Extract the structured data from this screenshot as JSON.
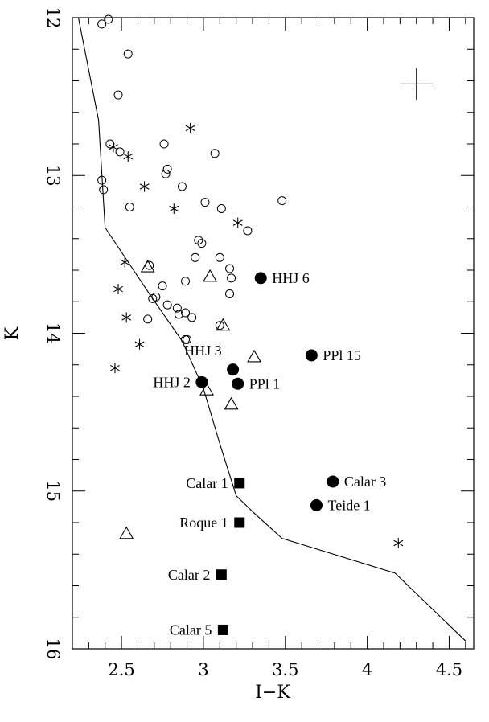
{
  "chart_data": {
    "type": "scatter",
    "xlabel": "I−K",
    "ylabel": "K",
    "xlim": [
      2.2,
      4.65
    ],
    "ylim": [
      16,
      12
    ],
    "y_inverted": true,
    "x_ticks": [
      2.5,
      3,
      3.5,
      4,
      4.5
    ],
    "x_tick_labels": [
      "2.5",
      "3",
      "3.5",
      "4",
      "4.5"
    ],
    "y_ticks": [
      12,
      13,
      14,
      15,
      16
    ],
    "y_tick_labels": [
      "12",
      "13",
      "14",
      "15",
      "16"
    ],
    "grid": false,
    "error_cross": {
      "x": 4.3,
      "y": 12.42,
      "dx": 0.1,
      "dy": 0.1
    },
    "isochrone": {
      "x": [
        2.2,
        2.36,
        2.4,
        2.67,
        2.87,
        3.0,
        3.1,
        3.2,
        3.3,
        3.48,
        4.17,
        4.6
      ],
      "y": [
        11.9,
        12.65,
        13.33,
        13.75,
        14.05,
        14.35,
        14.7,
        15.03,
        15.13,
        15.3,
        15.52,
        15.95
      ]
    },
    "series": [
      {
        "marker": "open-circle",
        "points": [
          [
            2.38,
            12.04
          ],
          [
            2.42,
            12.01
          ],
          [
            2.54,
            12.23
          ],
          [
            2.48,
            12.49
          ],
          [
            2.43,
            12.8
          ],
          [
            2.49,
            12.85
          ],
          [
            2.38,
            13.03
          ],
          [
            2.39,
            13.09
          ],
          [
            2.55,
            13.2
          ],
          [
            2.76,
            12.8
          ],
          [
            2.77,
            12.99
          ],
          [
            2.78,
            12.96
          ],
          [
            2.87,
            13.07
          ],
          [
            3.07,
            12.86
          ],
          [
            3.01,
            13.17
          ],
          [
            3.11,
            13.21
          ],
          [
            3.48,
            13.16
          ],
          [
            3.27,
            13.35
          ],
          [
            2.97,
            13.41
          ],
          [
            2.99,
            13.43
          ],
          [
            2.95,
            13.52
          ],
          [
            3.1,
            13.52
          ],
          [
            3.16,
            13.59
          ],
          [
            3.17,
            13.65
          ],
          [
            3.16,
            13.75
          ],
          [
            2.67,
            13.57
          ],
          [
            2.75,
            13.7
          ],
          [
            2.89,
            13.67
          ],
          [
            2.69,
            13.78
          ],
          [
            2.71,
            13.77
          ],
          [
            2.78,
            13.82
          ],
          [
            2.84,
            13.84
          ],
          [
            2.85,
            13.88
          ],
          [
            2.89,
            13.87
          ],
          [
            2.93,
            13.9
          ],
          [
            2.66,
            13.91
          ],
          [
            2.89,
            14.04
          ],
          [
            2.9,
            14.04
          ],
          [
            3.1,
            13.95
          ]
        ]
      },
      {
        "marker": "asterisk",
        "points": [
          [
            2.92,
            12.7
          ],
          [
            2.45,
            12.82
          ],
          [
            2.54,
            12.88
          ],
          [
            2.64,
            13.07
          ],
          [
            2.82,
            13.21
          ],
          [
            3.21,
            13.3
          ],
          [
            2.52,
            13.55
          ],
          [
            2.48,
            13.72
          ],
          [
            2.53,
            13.9
          ],
          [
            2.61,
            14.07
          ],
          [
            2.46,
            14.22
          ],
          [
            4.19,
            15.33
          ]
        ]
      },
      {
        "marker": "open-triangle",
        "points": [
          [
            2.66,
            13.58
          ],
          [
            3.04,
            13.64
          ],
          [
            3.12,
            13.95
          ],
          [
            3.31,
            14.15
          ],
          [
            3.02,
            14.36
          ],
          [
            3.17,
            14.45
          ],
          [
            2.53,
            15.27
          ]
        ]
      },
      {
        "marker": "filled-circle",
        "points": [
          [
            3.35,
            13.65
          ],
          [
            3.66,
            14.14
          ],
          [
            3.18,
            14.23
          ],
          [
            2.99,
            14.31
          ],
          [
            3.21,
            14.32
          ],
          [
            3.79,
            14.94
          ],
          [
            3.69,
            15.09
          ]
        ]
      },
      {
        "marker": "filled-square",
        "points": [
          [
            3.22,
            14.95
          ],
          [
            3.22,
            15.2
          ],
          [
            3.11,
            15.53
          ],
          [
            3.12,
            15.88
          ]
        ]
      }
    ],
    "annotations": [
      {
        "text": "HHJ 6",
        "x": 3.35,
        "y": 13.65,
        "anchor": "start"
      },
      {
        "text": "HHJ 3",
        "x": 3.18,
        "y": 14.23,
        "anchor": "end",
        "dy": -0.12
      },
      {
        "text": "PPl 15",
        "x": 3.66,
        "y": 14.14,
        "anchor": "start"
      },
      {
        "text": "HHJ 2",
        "x": 2.99,
        "y": 14.31,
        "anchor": "end"
      },
      {
        "text": "PPl 1",
        "x": 3.21,
        "y": 14.32,
        "anchor": "start"
      },
      {
        "text": "Calar 1",
        "x": 3.22,
        "y": 14.95,
        "anchor": "end"
      },
      {
        "text": "Calar 3",
        "x": 3.79,
        "y": 14.94,
        "anchor": "start"
      },
      {
        "text": "Teide 1",
        "x": 3.69,
        "y": 15.09,
        "anchor": "start"
      },
      {
        "text": "Roque 1",
        "x": 3.22,
        "y": 15.2,
        "anchor": "end"
      },
      {
        "text": "Calar 2",
        "x": 3.11,
        "y": 15.53,
        "anchor": "end"
      },
      {
        "text": "Calar 5",
        "x": 3.12,
        "y": 15.88,
        "anchor": "end"
      }
    ]
  }
}
